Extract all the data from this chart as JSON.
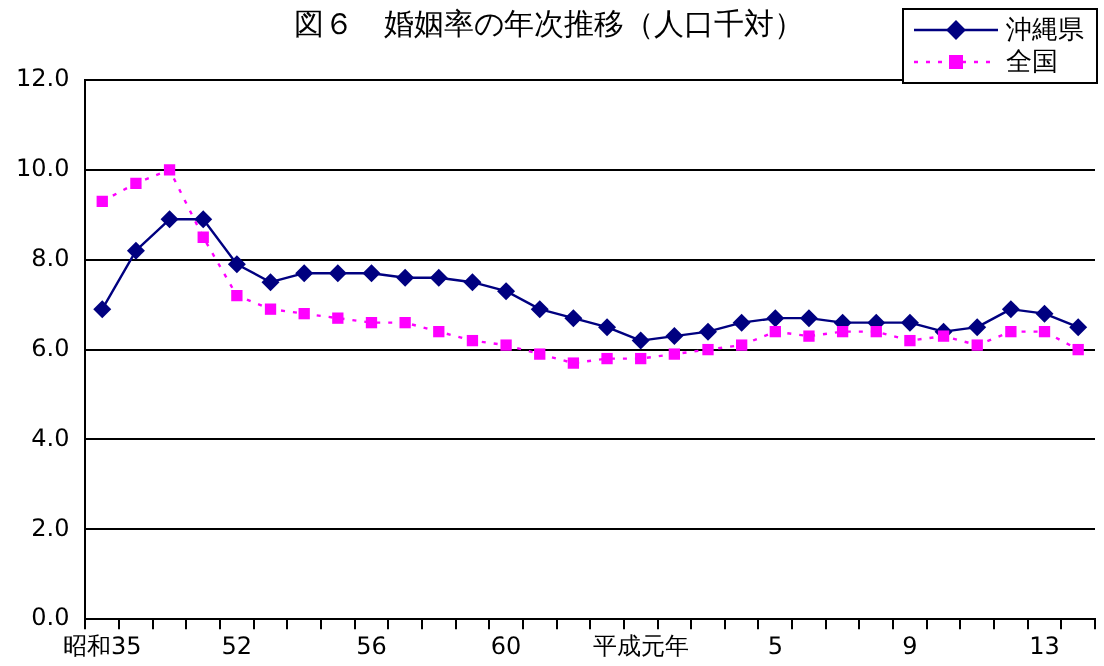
{
  "chart_data": {
    "type": "line",
    "title": "図６　婚姻率の年次推移（人口千対）",
    "categories": [
      "昭和35",
      null,
      null,
      null,
      "52",
      null,
      null,
      null,
      "56",
      null,
      null,
      null,
      "60",
      null,
      null,
      null,
      "平成元年",
      null,
      null,
      null,
      "5",
      null,
      null,
      null,
      "9",
      null,
      null,
      null,
      "13",
      null
    ],
    "series": [
      {
        "name": "沖縄県",
        "color": "#000080",
        "marker": "diamond",
        "line_style": "solid",
        "values": [
          6.9,
          8.2,
          8.9,
          8.9,
          7.9,
          7.5,
          7.7,
          7.7,
          7.7,
          7.6,
          7.6,
          7.5,
          7.3,
          6.9,
          6.7,
          6.5,
          6.2,
          6.3,
          6.4,
          6.6,
          6.7,
          6.7,
          6.6,
          6.6,
          6.6,
          6.4,
          6.5,
          6.9,
          6.8,
          6.5
        ]
      },
      {
        "name": "全国",
        "color": "#ff00ff",
        "marker": "square",
        "line_style": "dotted",
        "values": [
          9.3,
          9.7,
          10.0,
          8.5,
          7.2,
          6.9,
          6.8,
          6.7,
          6.6,
          6.6,
          6.4,
          6.2,
          6.1,
          5.9,
          5.7,
          5.8,
          5.8,
          5.9,
          6.0,
          6.1,
          6.4,
          6.3,
          6.4,
          6.4,
          6.2,
          6.3,
          6.1,
          6.4,
          6.4,
          6.0
        ]
      }
    ],
    "ylim": [
      0,
      12
    ],
    "yticks": [
      {
        "value": 0,
        "label": "0.0"
      },
      {
        "value": 2,
        "label": "2.0"
      },
      {
        "value": 4,
        "label": "4.0"
      },
      {
        "value": 6,
        "label": "6.0"
      },
      {
        "value": 8,
        "label": "8.0"
      },
      {
        "value": 10,
        "label": "10.0"
      },
      {
        "value": 12,
        "label": "12.0"
      }
    ],
    "grid": "y",
    "legend": "top right"
  }
}
